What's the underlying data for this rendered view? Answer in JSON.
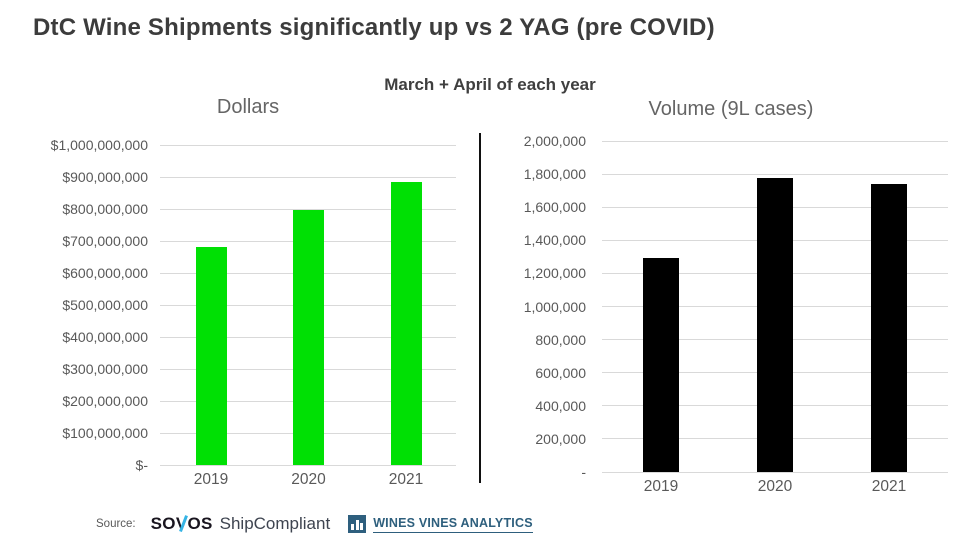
{
  "title": "DtC Wine Shipments significantly up vs 2 YAG (pre COVID)",
  "subtitle": "March + April of each year",
  "source": {
    "label": "Source:",
    "sovos_parts": [
      "SO",
      "V",
      "OS"
    ],
    "shipcompliant": "ShipCompliant",
    "wva": "WINES VINES ANALYTICS"
  },
  "colors": {
    "title_text": "#3c3c3c",
    "axis_text": "#595959",
    "gridline": "#d9d9d9",
    "dollars_bar": "#00e004",
    "volume_bar": "#000000",
    "divider": "#111111",
    "sovos_accent": "#35b4e5",
    "wva_blue": "#2e5f7d"
  },
  "chart_data": [
    {
      "type": "bar",
      "title": "Dollars",
      "categories": [
        "2019",
        "2020",
        "2021"
      ],
      "values": [
        682000000,
        796000000,
        883000000
      ],
      "bar_color": "#00e004",
      "ylim": [
        0,
        1000000000
      ],
      "ytick_step": 100000000,
      "ytick_format": "dollar",
      "zero_label": "$-",
      "grid": true,
      "legend": "none"
    },
    {
      "type": "bar",
      "title": "Volume (9L cases)",
      "categories": [
        "2019",
        "2020",
        "2021"
      ],
      "values": [
        1295000,
        1778000,
        1739000
      ],
      "bar_color": "#000000",
      "ylim": [
        0,
        2000000
      ],
      "ytick_step": 200000,
      "ytick_format": "plain",
      "zero_label": "-",
      "grid": true,
      "legend": "none"
    }
  ]
}
